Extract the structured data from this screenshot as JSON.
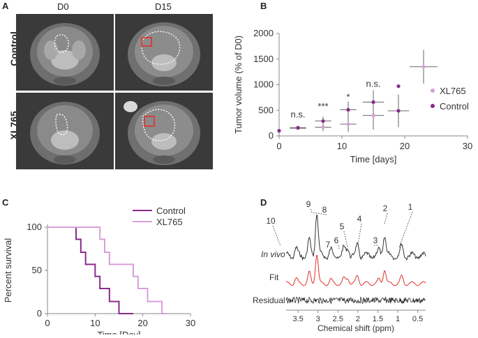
{
  "panelA": {
    "letter": "A",
    "col_labels": [
      "D0",
      "D15"
    ],
    "row_labels": [
      "Control",
      "XL765"
    ]
  },
  "panelB": {
    "letter": "B",
    "chart_data": {
      "type": "scatter",
      "ylabel": "Tumor volume (% of D0)",
      "xlabel": "Time [days]",
      "xlim": [
        0,
        30
      ],
      "ylim": [
        0,
        2000
      ],
      "xticks": [
        "0",
        "10",
        "20",
        "30"
      ],
      "yticks": [
        "0",
        "500",
        "1000",
        "1500",
        "2000"
      ],
      "series": [
        {
          "name": "XL765",
          "color": "#d8a0d8",
          "points": [
            {
              "x": 0,
              "y": 100,
              "err": 0,
              "xerr": 0
            },
            {
              "x": 3,
              "y": 150,
              "err": 30,
              "xerr": 1.3
            },
            {
              "x": 7,
              "y": 170,
              "err": 80,
              "xerr": 1.3
            },
            {
              "x": 11,
              "y": 230,
              "err": 150,
              "xerr": 1.3
            },
            {
              "x": 15,
              "y": 400,
              "err": 280,
              "xerr": 1.7
            },
            {
              "x": 23,
              "y": 1350,
              "err": 330,
              "xerr": 2.2
            }
          ]
        },
        {
          "name": "Control",
          "color": "#8a2a8a",
          "points": [
            {
              "x": 0,
              "y": 100,
              "err": 0,
              "xerr": 0
            },
            {
              "x": 3,
              "y": 160,
              "err": 35,
              "xerr": 1.3
            },
            {
              "x": 7,
              "y": 290,
              "err": 90,
              "xerr": 1.3
            },
            {
              "x": 11,
              "y": 510,
              "err": 160,
              "xerr": 1.3
            },
            {
              "x": 15,
              "y": 660,
              "err": 230,
              "xerr": 1.7
            },
            {
              "x": 19,
              "y": 490,
              "err": 320,
              "xerr": 1.7
            },
            {
              "x": 19,
              "y": 970,
              "err": 0,
              "xerr": 0
            }
          ]
        }
      ],
      "annotations": [
        {
          "x": 3,
          "y": 360,
          "text": "n.s."
        },
        {
          "x": 7,
          "y": 520,
          "text": "***"
        },
        {
          "x": 11,
          "y": 700,
          "text": "*"
        },
        {
          "x": 15,
          "y": 960,
          "text": "n.s."
        }
      ],
      "legend": "right"
    }
  },
  "panelC": {
    "letter": "C",
    "chart_data": {
      "type": "line",
      "ylabel": "Percent survival",
      "xlabel": "Time [Day]",
      "xlim": [
        0,
        30
      ],
      "ylim": [
        0,
        100
      ],
      "xticks": [
        "0",
        "10",
        "20",
        "30"
      ],
      "yticks": [
        "0",
        "50",
        "100"
      ],
      "series": [
        {
          "name": "Control",
          "color": "#8a2a8a",
          "x": [
            0,
            5,
            6,
            7,
            8,
            9,
            10,
            11,
            12,
            13,
            14,
            15,
            18
          ],
          "y": [
            100,
            100,
            86,
            71,
            57,
            57,
            43,
            29,
            29,
            14,
            14,
            0,
            0
          ]
        },
        {
          "name": "XL765",
          "color": "#d8a0d8",
          "x": [
            0,
            6,
            11,
            12,
            13,
            14,
            15,
            17,
            18,
            19,
            20,
            21,
            22,
            24,
            25
          ],
          "y": [
            100,
            100,
            86,
            71,
            57,
            57,
            57,
            57,
            43,
            29,
            29,
            14,
            14,
            0,
            0
          ]
        }
      ],
      "legend": "top-right"
    }
  },
  "panelD": {
    "letter": "D",
    "row_labels": [
      "In vivo",
      "Fit",
      "Residual"
    ],
    "peaks": [
      "10",
      "9",
      "8",
      "7",
      "6",
      "5",
      "4",
      "3",
      "2",
      "1"
    ],
    "xlabel": "Chemical shift (ppm)",
    "xticks": [
      "3.5",
      "3",
      "2.5",
      "2",
      "1.5",
      "1",
      "0.5"
    ]
  }
}
